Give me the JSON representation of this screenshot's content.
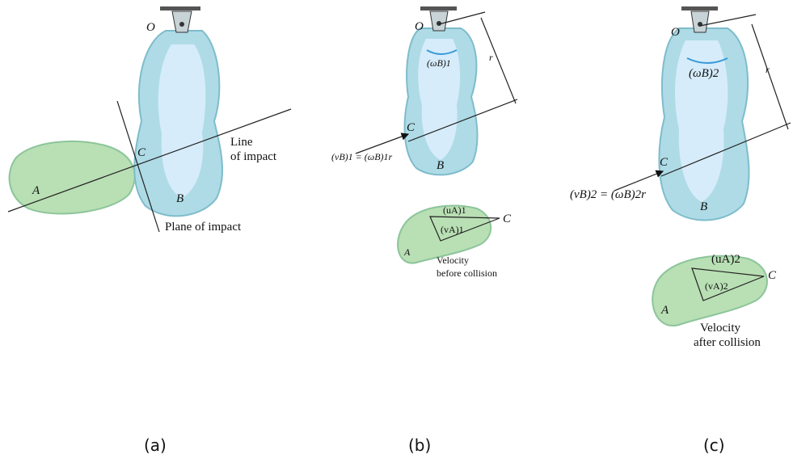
{
  "panels": [
    {
      "caption": "(a)",
      "labels": [
        "O",
        "C",
        "Line",
        "of impact",
        "A",
        "B",
        "Plane of impact"
      ]
    },
    {
      "caption": "(b)",
      "labels": [
        "O",
        "(ωB)1",
        "r",
        "C",
        "(vB)1 = (ωB)1r",
        "B",
        "(uA)1",
        "C",
        "(vA)1",
        "A",
        "Velocity",
        "before collision"
      ]
    },
    {
      "caption": "(c)",
      "labels": [
        "O",
        "(ωB)2",
        "r",
        "C",
        "(vB)2 = (ωB)2r",
        "B",
        "(uA)2",
        "C",
        "(vA)2",
        "A",
        "Velocity",
        "after collision"
      ]
    }
  ]
}
